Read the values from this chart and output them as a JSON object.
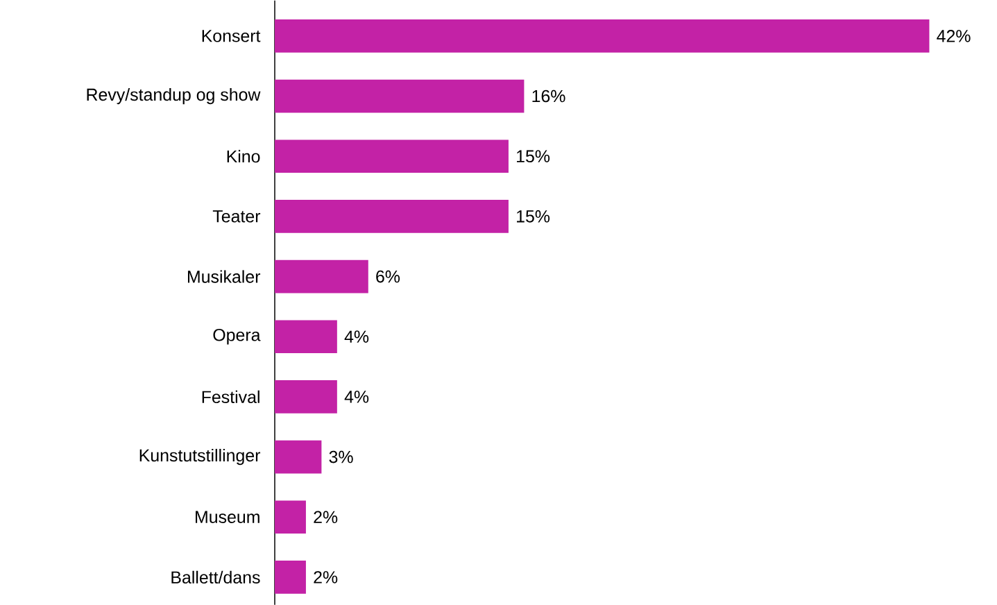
{
  "chart_data": {
    "type": "bar",
    "orientation": "horizontal",
    "categories": [
      "Konsert",
      "Revy/standup og show",
      "Kino",
      "Teater",
      "Musikaler",
      "Opera",
      "Festival",
      "Kunstutstillinger",
      "Museum",
      "Ballett/dans"
    ],
    "values": [
      42,
      16,
      15,
      15,
      6,
      4,
      4,
      3,
      2,
      2
    ],
    "value_labels": [
      "42%",
      "16%",
      "15%",
      "15%",
      "6%",
      "4%",
      "4%",
      "3%",
      "2%",
      "2%"
    ],
    "color": "#c322a6"
  }
}
